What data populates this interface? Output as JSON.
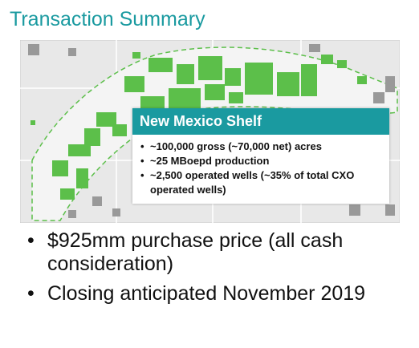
{
  "header": {
    "title": "Transaction Summary"
  },
  "map": {
    "callout": {
      "title": "New Mexico Shelf",
      "bullets": [
        "~100,000 gross (~70,000 net) acres",
        "~25 MBoepd production",
        "~2,500 operated wells (~35% of total CXO operated wells)"
      ]
    }
  },
  "bullets": [
    "$925mm purchase price (all cash consideration)",
    "Closing anticipated November 2019"
  ]
}
